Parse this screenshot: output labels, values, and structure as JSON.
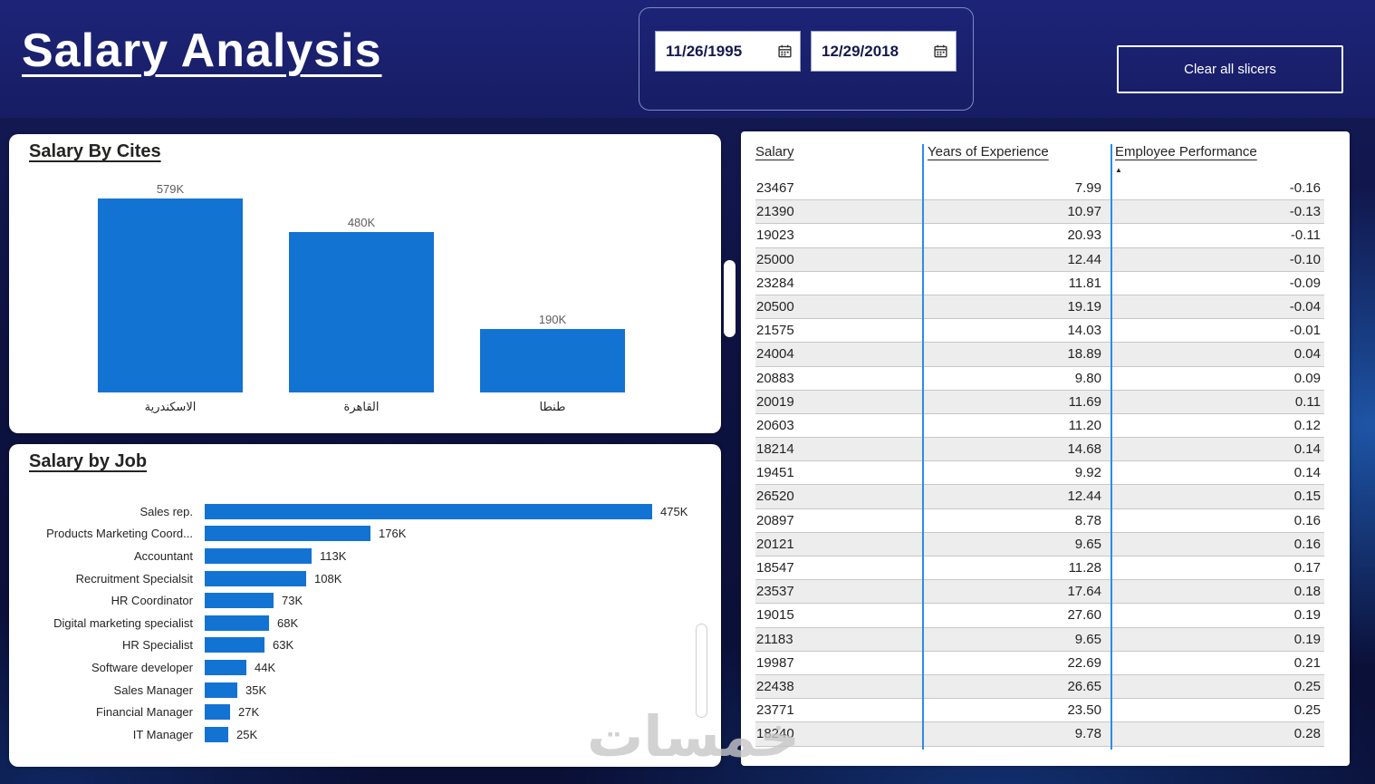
{
  "header": {
    "title": "Salary Analysis",
    "date_slicer": {
      "from_value": "11/26/1995",
      "to_value": "12/29/2018"
    },
    "clear_button_label": "Clear all slicers"
  },
  "icons": {
    "calendar-icon": "calendar-grid-glyph",
    "sort-ascending-icon": "▲"
  },
  "colors": {
    "header_bg": "#1b2173",
    "bar_blue": "#1373d3",
    "table_separator": "#2b8ce8",
    "row_alt_bg": "#ededed",
    "panel_bg": "#ffffff",
    "page_bg": "#0d1240"
  },
  "watermark": "خمسات",
  "chart_data": [
    {
      "type": "bar",
      "title": "Salary By Cites",
      "orientation": "vertical",
      "categories": [
        "الاسكندرية",
        "القاهرة",
        "طنطا"
      ],
      "values": [
        579000,
        480000,
        190000
      ],
      "value_labels": [
        "579K",
        "480K",
        "190K"
      ],
      "ylim": [
        0,
        579000
      ],
      "grid": false,
      "legend": "none"
    },
    {
      "type": "bar",
      "title": "Salary by Job",
      "orientation": "horizontal",
      "categories": [
        "Sales rep.",
        "Products Marketing Coord...",
        "Accountant",
        "Recruitment Specialsit",
        "HR Coordinator",
        "Digital marketing specialist",
        "HR Specialist",
        "Software developer",
        "Sales Manager",
        "Financial Manager",
        "IT Manager"
      ],
      "values": [
        475000,
        176000,
        113000,
        108000,
        73000,
        68000,
        63000,
        44000,
        35000,
        27000,
        25000
      ],
      "value_labels": [
        "475K",
        "176K",
        "113K",
        "108K",
        "73K",
        "68K",
        "63K",
        "44K",
        "35K",
        "27K",
        "25K"
      ],
      "xlim": [
        0,
        475000
      ],
      "grid": false,
      "legend": "none"
    },
    {
      "type": "table",
      "columns": [
        "Salary",
        "Years of Experience",
        "Employee Performance"
      ],
      "sort": {
        "column": "Employee Performance",
        "direction": "ascending"
      },
      "rows": [
        [
          "23467",
          "7.99",
          "-0.16"
        ],
        [
          "21390",
          "10.97",
          "-0.13"
        ],
        [
          "19023",
          "20.93",
          "-0.11"
        ],
        [
          "25000",
          "12.44",
          "-0.10"
        ],
        [
          "23284",
          "11.81",
          "-0.09"
        ],
        [
          "20500",
          "19.19",
          "-0.04"
        ],
        [
          "21575",
          "14.03",
          "-0.01"
        ],
        [
          "24004",
          "18.89",
          "0.04"
        ],
        [
          "20883",
          "9.80",
          "0.09"
        ],
        [
          "20019",
          "11.69",
          "0.11"
        ],
        [
          "20603",
          "11.20",
          "0.12"
        ],
        [
          "18214",
          "14.68",
          "0.14"
        ],
        [
          "19451",
          "9.92",
          "0.14"
        ],
        [
          "26520",
          "12.44",
          "0.15"
        ],
        [
          "20897",
          "8.78",
          "0.16"
        ],
        [
          "20121",
          "9.65",
          "0.16"
        ],
        [
          "18547",
          "11.28",
          "0.17"
        ],
        [
          "23537",
          "17.64",
          "0.18"
        ],
        [
          "19015",
          "27.60",
          "0.19"
        ],
        [
          "21183",
          "9.65",
          "0.19"
        ],
        [
          "19987",
          "22.69",
          "0.21"
        ],
        [
          "22438",
          "26.65",
          "0.25"
        ],
        [
          "23771",
          "23.50",
          "0.25"
        ],
        [
          "18240",
          "9.78",
          "0.28"
        ]
      ]
    }
  ]
}
